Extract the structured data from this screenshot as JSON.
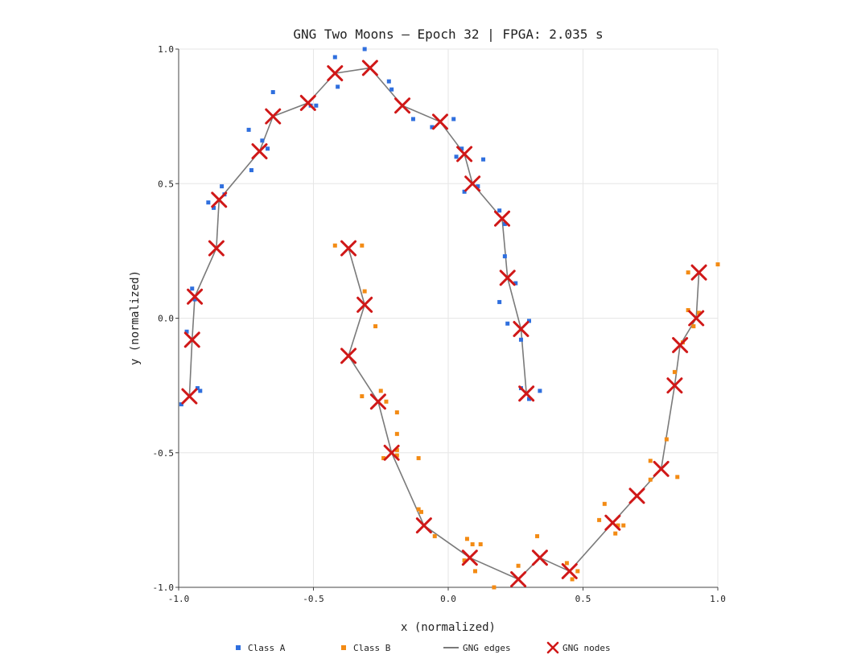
{
  "chart_data": {
    "type": "scatter",
    "title": "GNG Two Moons  —  Epoch 32  |  FPGA: 2.035 s",
    "xlabel": "x (normalized)",
    "ylabel": "y (normalized)",
    "xlim": [
      -1.0,
      1.0
    ],
    "ylim": [
      -1.0,
      1.0
    ],
    "x_ticks": [
      "-1.0",
      "-0.5",
      "0.0",
      "0.5",
      "1.0"
    ],
    "y_ticks": [
      "1.0",
      "0.5",
      "0.0",
      "-0.5",
      "-1.0"
    ],
    "grid": true,
    "legend_position": "bottom",
    "colors": {
      "class_a": "#2f6fde",
      "class_b": "#f38b14",
      "edges": "#7a7a7a",
      "nodes": "#d01818"
    },
    "legend": [
      "Class A",
      "Class B",
      "GNG edges",
      "GNG nodes"
    ],
    "series": [
      {
        "name": "Class A",
        "points": [
          [
            -0.99,
            -0.32
          ],
          [
            -0.97,
            -0.05
          ],
          [
            -0.95,
            0.11
          ],
          [
            -0.94,
            0.07
          ],
          [
            -0.93,
            -0.26
          ],
          [
            -0.92,
            -0.27
          ],
          [
            -0.89,
            0.43
          ],
          [
            -0.87,
            0.41
          ],
          [
            -0.84,
            0.49
          ],
          [
            -0.83,
            0.46
          ],
          [
            -0.74,
            0.7
          ],
          [
            -0.73,
            0.55
          ],
          [
            -0.69,
            0.66
          ],
          [
            -0.67,
            0.63
          ],
          [
            -0.65,
            0.84
          ],
          [
            -0.51,
            0.79
          ],
          [
            -0.49,
            0.79
          ],
          [
            -0.42,
            0.97
          ],
          [
            -0.41,
            0.86
          ],
          [
            -0.31,
            1.0
          ],
          [
            -0.22,
            0.88
          ],
          [
            -0.21,
            0.85
          ],
          [
            -0.13,
            0.74
          ],
          [
            -0.06,
            0.71
          ],
          [
            0.02,
            0.74
          ],
          [
            0.03,
            0.6
          ],
          [
            0.05,
            0.63
          ],
          [
            0.06,
            0.47
          ],
          [
            0.11,
            0.49
          ],
          [
            0.13,
            0.59
          ],
          [
            0.19,
            0.4
          ],
          [
            0.21,
            0.23
          ],
          [
            0.21,
            0.35
          ],
          [
            0.19,
            0.06
          ],
          [
            0.22,
            -0.02
          ],
          [
            0.25,
            0.13
          ],
          [
            0.27,
            -0.08
          ],
          [
            0.27,
            -0.26
          ],
          [
            0.3,
            -0.3
          ],
          [
            0.3,
            -0.01
          ],
          [
            0.34,
            -0.27
          ]
        ]
      },
      {
        "name": "Class B",
        "points": [
          [
            -0.42,
            0.27
          ],
          [
            -0.32,
            0.27
          ],
          [
            -0.31,
            0.1
          ],
          [
            -0.27,
            -0.03
          ],
          [
            -0.32,
            -0.29
          ],
          [
            -0.25,
            -0.27
          ],
          [
            -0.23,
            -0.31
          ],
          [
            -0.19,
            -0.35
          ],
          [
            -0.19,
            -0.43
          ],
          [
            -0.24,
            -0.52
          ],
          [
            -0.19,
            -0.49
          ],
          [
            -0.19,
            -0.51
          ],
          [
            -0.11,
            -0.52
          ],
          [
            -0.11,
            -0.71
          ],
          [
            -0.1,
            -0.72
          ],
          [
            -0.05,
            -0.81
          ],
          [
            0.07,
            -0.82
          ],
          [
            0.09,
            -0.84
          ],
          [
            0.06,
            -0.9
          ],
          [
            0.1,
            -0.94
          ],
          [
            0.12,
            -0.84
          ],
          [
            0.17,
            -1.0
          ],
          [
            0.26,
            -0.92
          ],
          [
            0.33,
            -0.81
          ],
          [
            0.44,
            -0.91
          ],
          [
            0.46,
            -0.97
          ],
          [
            0.48,
            -0.94
          ],
          [
            0.56,
            -0.75
          ],
          [
            0.58,
            -0.69
          ],
          [
            0.62,
            -0.8
          ],
          [
            0.63,
            -0.77
          ],
          [
            0.65,
            -0.77
          ],
          [
            0.75,
            -0.53
          ],
          [
            0.75,
            -0.6
          ],
          [
            0.81,
            -0.45
          ],
          [
            0.85,
            -0.59
          ],
          [
            0.84,
            -0.2
          ],
          [
            0.87,
            -0.09
          ],
          [
            0.89,
            0.03
          ],
          [
            0.91,
            -0.03
          ],
          [
            0.89,
            0.17
          ],
          [
            0.93,
            0.02
          ],
          [
            1.0,
            0.2
          ]
        ]
      }
    ],
    "gng_nodes": [
      [
        -0.96,
        -0.29
      ],
      [
        -0.95,
        -0.08
      ],
      [
        -0.94,
        0.08
      ],
      [
        -0.86,
        0.26
      ],
      [
        -0.85,
        0.44
      ],
      [
        -0.7,
        0.62
      ],
      [
        -0.65,
        0.75
      ],
      [
        -0.52,
        0.8
      ],
      [
        -0.42,
        0.91
      ],
      [
        -0.29,
        0.93
      ],
      [
        -0.17,
        0.79
      ],
      [
        -0.03,
        0.73
      ],
      [
        0.06,
        0.61
      ],
      [
        0.09,
        0.5
      ],
      [
        0.2,
        0.37
      ],
      [
        0.22,
        0.15
      ],
      [
        0.27,
        -0.04
      ],
      [
        0.29,
        -0.28
      ],
      [
        -0.37,
        0.26
      ],
      [
        -0.31,
        0.05
      ],
      [
        -0.37,
        -0.14
      ],
      [
        -0.26,
        -0.31
      ],
      [
        -0.21,
        -0.5
      ],
      [
        -0.09,
        -0.77
      ],
      [
        0.08,
        -0.89
      ],
      [
        0.26,
        -0.97
      ],
      [
        0.34,
        -0.89
      ],
      [
        0.45,
        -0.94
      ],
      [
        0.61,
        -0.76
      ],
      [
        0.7,
        -0.66
      ],
      [
        0.79,
        -0.56
      ],
      [
        0.84,
        -0.25
      ],
      [
        0.86,
        -0.1
      ],
      [
        0.92,
        -0.0
      ],
      [
        0.93,
        0.17
      ]
    ],
    "gng_edges": [
      [
        0,
        1
      ],
      [
        1,
        2
      ],
      [
        2,
        3
      ],
      [
        3,
        4
      ],
      [
        4,
        5
      ],
      [
        5,
        6
      ],
      [
        6,
        7
      ],
      [
        7,
        8
      ],
      [
        8,
        9
      ],
      [
        9,
        10
      ],
      [
        10,
        11
      ],
      [
        11,
        12
      ],
      [
        12,
        13
      ],
      [
        13,
        14
      ],
      [
        14,
        15
      ],
      [
        15,
        16
      ],
      [
        16,
        17
      ],
      [
        18,
        19
      ],
      [
        19,
        20
      ],
      [
        20,
        21
      ],
      [
        21,
        22
      ],
      [
        22,
        23
      ],
      [
        23,
        24
      ],
      [
        24,
        25
      ],
      [
        25,
        26
      ],
      [
        26,
        27
      ],
      [
        27,
        28
      ],
      [
        28,
        29
      ],
      [
        29,
        30
      ],
      [
        30,
        31
      ],
      [
        31,
        32
      ],
      [
        32,
        33
      ],
      [
        33,
        34
      ]
    ]
  }
}
